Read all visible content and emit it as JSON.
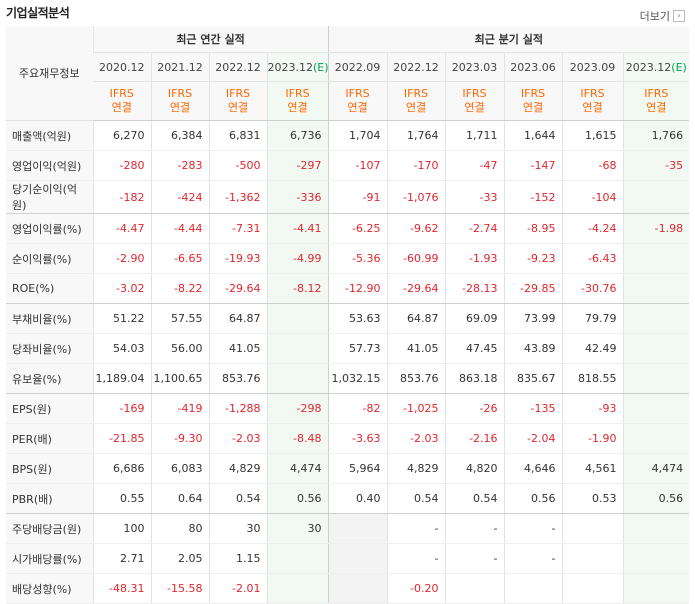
{
  "header": {
    "title": "기업실적분석",
    "more_label": "더보기"
  },
  "table": {
    "row_label_header": "주요재무정보",
    "groups": {
      "annual": "최근 연간 실적",
      "quarterly": "최근 분기 실적"
    },
    "periods": [
      "2020.12",
      "2021.12",
      "2022.12",
      "2023.12",
      "2022.09",
      "2022.12",
      "2023.03",
      "2023.06",
      "2023.09",
      "2023.12"
    ],
    "estimate_suffix": "(E)",
    "basis_top": "IFRS",
    "basis_bottom": "연결",
    "rows": [
      {
        "label": "매출액(억원)",
        "values": [
          "6,270",
          "6,384",
          "6,831",
          "6,736",
          "1,704",
          "1,764",
          "1,711",
          "1,644",
          "1,615",
          "1,766"
        ]
      },
      {
        "label": "영업이익(억원)",
        "values": [
          "-280",
          "-283",
          "-500",
          "-297",
          "-107",
          "-170",
          "-47",
          "-147",
          "-68",
          "-35"
        ]
      },
      {
        "label": "당기순이익(억원)",
        "values": [
          "-182",
          "-424",
          "-1,362",
          "-336",
          "-91",
          "-1,076",
          "-33",
          "-152",
          "-104",
          ""
        ]
      },
      {
        "label": "영업이익률(%)",
        "values": [
          "-4.47",
          "-4.44",
          "-7.31",
          "-4.41",
          "-6.25",
          "-9.62",
          "-2.74",
          "-8.95",
          "-4.24",
          "-1.98"
        ]
      },
      {
        "label": "순이익률(%)",
        "values": [
          "-2.90",
          "-6.65",
          "-19.93",
          "-4.99",
          "-5.36",
          "-60.99",
          "-1.93",
          "-9.23",
          "-6.43",
          ""
        ]
      },
      {
        "label": "ROE(%)",
        "values": [
          "-3.02",
          "-8.22",
          "-29.64",
          "-8.12",
          "-12.90",
          "-29.64",
          "-28.13",
          "-29.85",
          "-30.76",
          ""
        ]
      },
      {
        "label": "부채비율(%)",
        "values": [
          "51.22",
          "57.55",
          "64.87",
          "",
          "53.63",
          "64.87",
          "69.09",
          "73.99",
          "79.79",
          ""
        ]
      },
      {
        "label": "당좌비율(%)",
        "values": [
          "54.03",
          "56.00",
          "41.05",
          "",
          "57.73",
          "41.05",
          "47.45",
          "43.89",
          "42.49",
          ""
        ]
      },
      {
        "label": "유보율(%)",
        "values": [
          "1,189.04",
          "1,100.65",
          "853.76",
          "",
          "1,032.15",
          "853.76",
          "863.18",
          "835.67",
          "818.55",
          ""
        ]
      },
      {
        "label": "EPS(원)",
        "values": [
          "-169",
          "-419",
          "-1,288",
          "-298",
          "-82",
          "-1,025",
          "-26",
          "-135",
          "-93",
          ""
        ]
      },
      {
        "label": "PER(배)",
        "values": [
          "-21.85",
          "-9.30",
          "-2.03",
          "-8.48",
          "-3.63",
          "-2.03",
          "-2.16",
          "-2.04",
          "-1.90",
          ""
        ]
      },
      {
        "label": "BPS(원)",
        "values": [
          "6,686",
          "6,083",
          "4,829",
          "4,474",
          "5,964",
          "4,829",
          "4,820",
          "4,646",
          "4,561",
          "4,474"
        ]
      },
      {
        "label": "PBR(배)",
        "values": [
          "0.55",
          "0.64",
          "0.54",
          "0.56",
          "0.40",
          "0.54",
          "0.54",
          "0.56",
          "0.53",
          "0.56"
        ]
      },
      {
        "label": "주당배당금(원)",
        "values": [
          "100",
          "80",
          "30",
          "30",
          "",
          "-",
          "-",
          "-",
          "",
          ""
        ]
      },
      {
        "label": "시가배당률(%)",
        "values": [
          "2.71",
          "2.05",
          "1.15",
          "",
          "",
          "-",
          "-",
          "-",
          "",
          ""
        ]
      },
      {
        "label": "배당성향(%)",
        "values": [
          "-48.31",
          "-15.58",
          "-2.01",
          "",
          "",
          "-0.20",
          "",
          "",
          "",
          ""
        ]
      }
    ]
  }
}
